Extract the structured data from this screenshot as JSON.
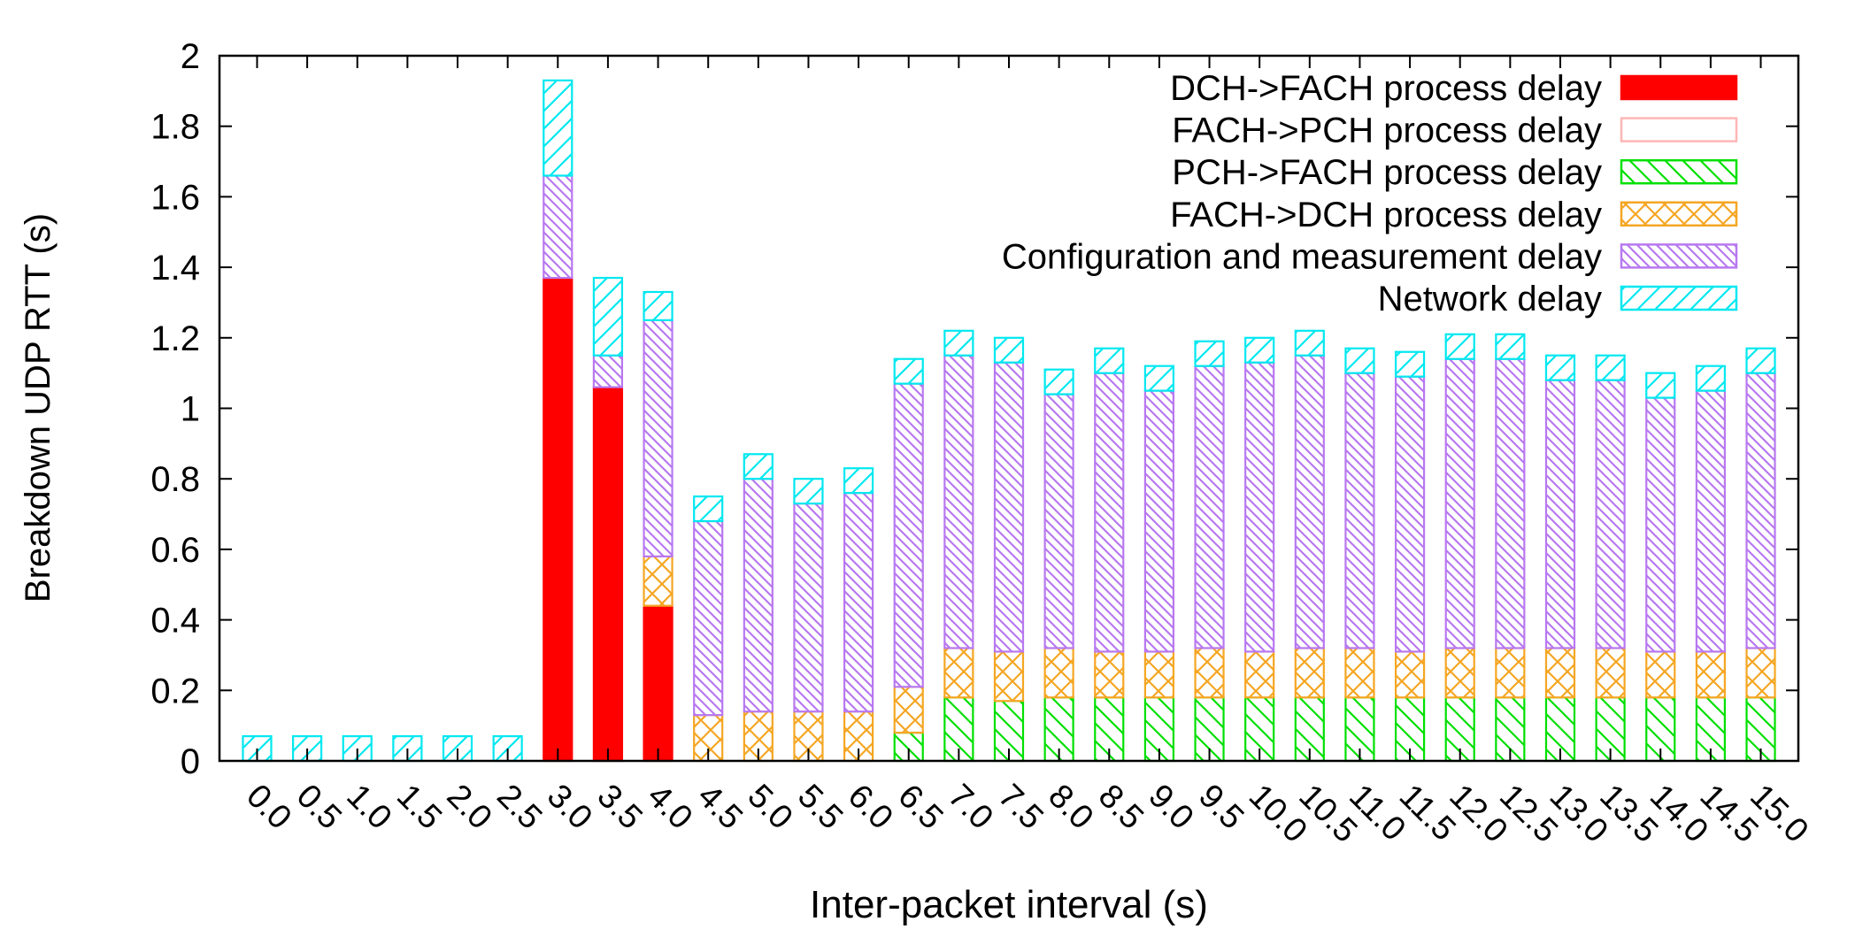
{
  "chart_data": {
    "type": "bar",
    "stacked": true,
    "xlabel": "Inter-packet interval (s)",
    "ylabel": "Breakdown UDP RTT (s)",
    "ylim": [
      0,
      2
    ],
    "yticks": [
      "0",
      "0.2",
      "0.4",
      "0.6",
      "0.8",
      "1",
      "1.2",
      "1.4",
      "1.6",
      "1.8",
      "2"
    ],
    "categories": [
      "0.0",
      "0.5",
      "1.0",
      "1.5",
      "2.0",
      "2.5",
      "3.0",
      "3.5",
      "4.0",
      "4.5",
      "5.0",
      "5.5",
      "6.0",
      "6.5",
      "7.0",
      "7.5",
      "8.0",
      "8.5",
      "9.0",
      "9.5",
      "10.0",
      "10.5",
      "11.0",
      "11.5",
      "12.0",
      "12.5",
      "13.0",
      "13.5",
      "14.0",
      "14.5",
      "15.0"
    ],
    "legend_position": "top-right",
    "grid": false,
    "series": [
      {
        "name": "DCH->FACH process delay",
        "color": "#ff0000",
        "pattern": "solid",
        "values": [
          0,
          0,
          0,
          0,
          0,
          0,
          1.37,
          1.06,
          0.44,
          0,
          0,
          0,
          0,
          0,
          0,
          0,
          0,
          0,
          0,
          0,
          0,
          0,
          0,
          0,
          0,
          0,
          0,
          0,
          0,
          0,
          0
        ]
      },
      {
        "name": "FACH->PCH process delay",
        "color": "#ffb6b6",
        "pattern": "empty",
        "values": [
          0,
          0,
          0,
          0,
          0,
          0,
          0,
          0,
          0,
          0,
          0,
          0,
          0,
          0,
          0,
          0,
          0,
          0,
          0,
          0,
          0,
          0,
          0,
          0,
          0,
          0,
          0,
          0,
          0,
          0,
          0
        ]
      },
      {
        "name": "PCH->FACH process delay",
        "color": "#00e000",
        "pattern": "diag-back",
        "values": [
          0,
          0,
          0,
          0,
          0,
          0,
          0,
          0,
          0,
          0,
          0,
          0,
          0,
          0.08,
          0.18,
          0.17,
          0.18,
          0.18,
          0.18,
          0.18,
          0.18,
          0.18,
          0.18,
          0.18,
          0.18,
          0.18,
          0.18,
          0.18,
          0.18,
          0.18,
          0.18
        ]
      },
      {
        "name": "FACH->DCH process delay",
        "color": "#f5a623",
        "pattern": "cross",
        "values": [
          0,
          0,
          0,
          0,
          0,
          0,
          0,
          0,
          0.14,
          0.13,
          0.14,
          0.14,
          0.14,
          0.13,
          0.14,
          0.14,
          0.14,
          0.13,
          0.13,
          0.14,
          0.13,
          0.14,
          0.14,
          0.13,
          0.14,
          0.14,
          0.14,
          0.14,
          0.13,
          0.13,
          0.14
        ]
      },
      {
        "name": "Configuration and measurement delay",
        "color": "#b878f0",
        "pattern": "diag-back-dense",
        "values": [
          0,
          0,
          0,
          0,
          0,
          0,
          0.29,
          0.09,
          0.67,
          0.55,
          0.66,
          0.59,
          0.62,
          0.86,
          0.83,
          0.82,
          0.72,
          0.79,
          0.74,
          0.8,
          0.82,
          0.83,
          0.78,
          0.78,
          0.82,
          0.82,
          0.76,
          0.76,
          0.72,
          0.74,
          0.78
        ]
      },
      {
        "name": "Network delay",
        "color": "#00e8f0",
        "pattern": "diag-fwd",
        "values": [
          0.07,
          0.07,
          0.07,
          0.07,
          0.07,
          0.07,
          0.27,
          0.22,
          0.08,
          0.07,
          0.07,
          0.07,
          0.07,
          0.07,
          0.07,
          0.07,
          0.07,
          0.07,
          0.07,
          0.07,
          0.07,
          0.07,
          0.07,
          0.07,
          0.07,
          0.07,
          0.07,
          0.07,
          0.07,
          0.07,
          0.07
        ]
      }
    ]
  }
}
